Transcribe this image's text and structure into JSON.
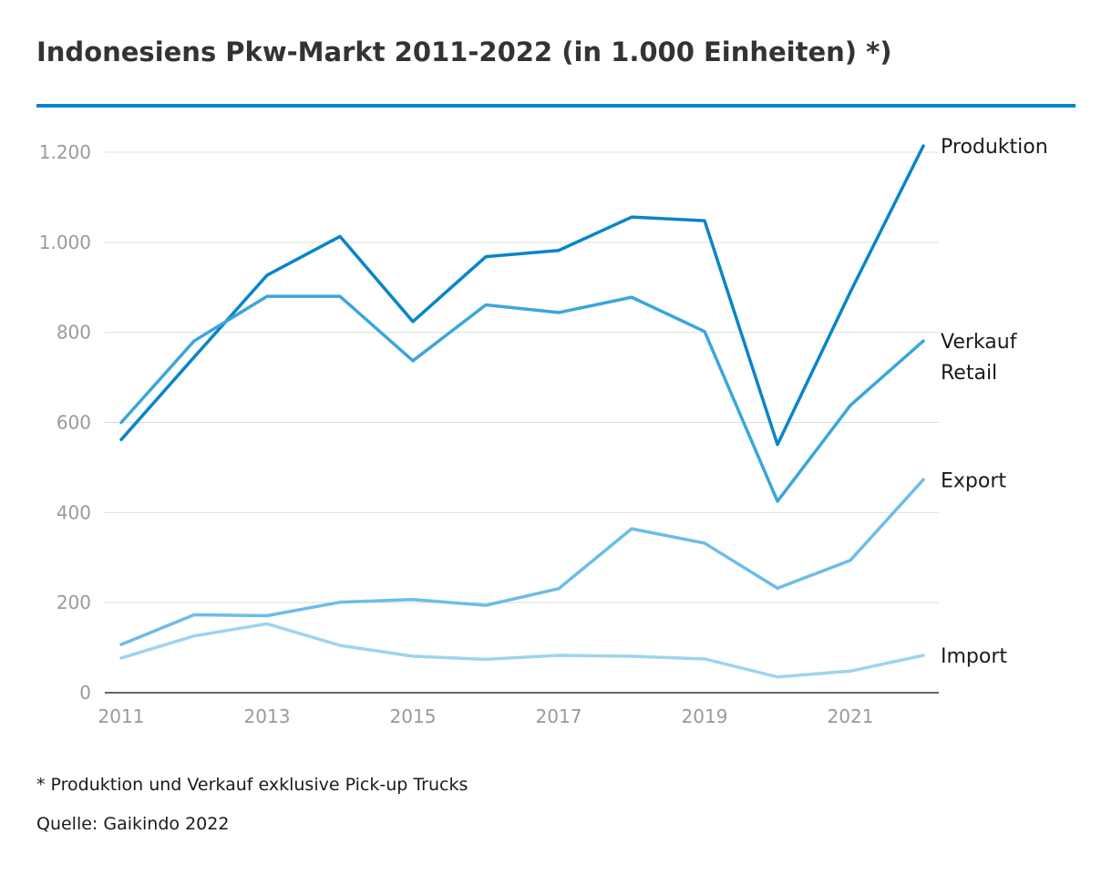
{
  "title": "Indonesiens Pkw-Markt 2011-2022 (in 1.000 Einheiten) *)",
  "footnote": "* Produktion und Verkauf exklusive Pick-up Trucks",
  "source": "Quelle: Gaikindo 2022",
  "colors": {
    "accent_rule": "#0a85c9",
    "grid": "#dddddd",
    "axis": "#333333"
  },
  "chart_data": {
    "type": "line",
    "x": [
      2011,
      2012,
      2013,
      2014,
      2015,
      2016,
      2017,
      2018,
      2019,
      2020,
      2021,
      2022
    ],
    "x_tick_labels": [
      "2011",
      "2013",
      "2015",
      "2017",
      "2019",
      "2021"
    ],
    "y_tick_labels": [
      "0",
      "200",
      "400",
      "600",
      "800",
      "1.000",
      "1.200"
    ],
    "y_ticks": [
      0,
      200,
      400,
      600,
      800,
      1000,
      1200
    ],
    "ylim": [
      0,
      1200
    ],
    "xlim": [
      2011,
      2022
    ],
    "grid": true,
    "legend": "inline labels at line ends",
    "series": [
      {
        "name": "Produktion",
        "label_lines": [
          "Produktion"
        ],
        "color": "#0a85c9",
        "width": 3.5,
        "values": [
          562,
          745,
          927,
          1013,
          824,
          968,
          982,
          1056,
          1048,
          551,
          890,
          1214
        ]
      },
      {
        "name": "Verkauf Retail",
        "label_lines": [
          "Verkauf",
          "Retail"
        ],
        "color": "#3aa6dd",
        "width": 3.5,
        "values": [
          600,
          781,
          880,
          880,
          737,
          861,
          844,
          878,
          802,
          425,
          638,
          781
        ]
      },
      {
        "name": "Export",
        "label_lines": [
          "Export"
        ],
        "color": "#6cbde8",
        "width": 3.5,
        "values": [
          107,
          173,
          171,
          201,
          207,
          194,
          231,
          364,
          332,
          232,
          294,
          473
        ]
      },
      {
        "name": "Import",
        "label_lines": [
          "Import"
        ],
        "color": "#9fd3ef",
        "width": 3.5,
        "values": [
          77,
          126,
          153,
          105,
          81,
          74,
          83,
          81,
          75,
          35,
          48,
          83
        ]
      }
    ]
  }
}
